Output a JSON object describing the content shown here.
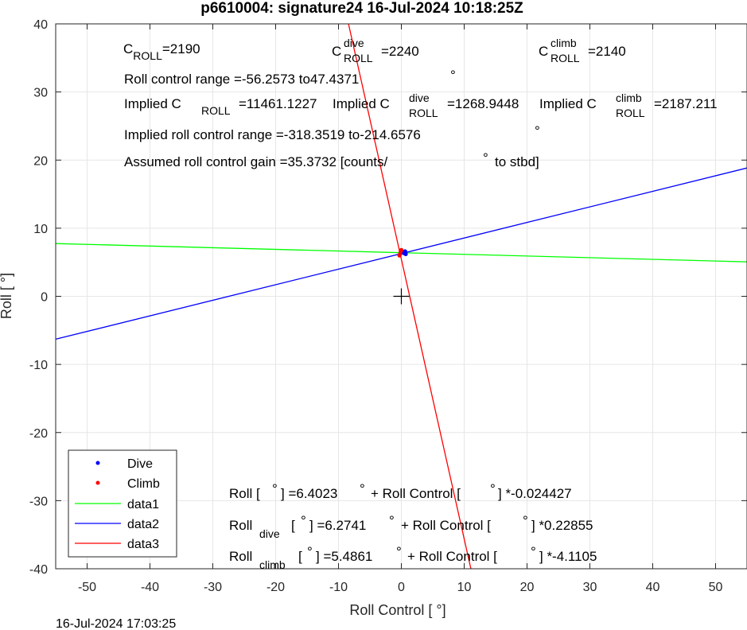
{
  "chart_data": {
    "type": "scatter",
    "title": "p6610004: signature24 16-Jul-2024 10:18:25Z",
    "xlabel": "Roll Control [   °]",
    "ylabel": "Roll [  °]",
    "xlim": [
      -55,
      55
    ],
    "ylim": [
      -40,
      40
    ],
    "xticks": [
      -50,
      -40,
      -30,
      -20,
      -10,
      0,
      10,
      20,
      30,
      40,
      50
    ],
    "yticks": [
      -40,
      -30,
      -20,
      -10,
      0,
      10,
      20,
      30,
      40
    ],
    "grid": true,
    "legend_position": "bottom-left",
    "footer": "16-Jul-2024 17:03:25",
    "series": [
      {
        "name": "Dive",
        "kind": "points",
        "color": "#0000ff",
        "x": [
          0.3,
          0.5,
          0.6,
          0.7,
          0.4
        ],
        "y": [
          6.4,
          6.3,
          6.6,
          6.2,
          6.5
        ]
      },
      {
        "name": "Climb",
        "kind": "points",
        "color": "#ff0000",
        "x": [
          -0.2,
          -0.1,
          -0.3,
          0.0
        ],
        "y": [
          6.2,
          6.6,
          6.0,
          6.8
        ]
      },
      {
        "name": "data1",
        "kind": "line",
        "color": "#00ff00",
        "x": [
          -55,
          55
        ],
        "y": [
          7.7457,
          5.0589
        ]
      },
      {
        "name": "data2",
        "kind": "line",
        "color": "#0000ff",
        "x": [
          -55,
          55
        ],
        "y": [
          -6.2962,
          18.8444
        ]
      },
      {
        "name": "data3",
        "kind": "line",
        "color": "#ff0000",
        "x": [
          -8.4097,
          11.0666
        ],
        "y": [
          40,
          -40
        ]
      }
    ],
    "center_marker": {
      "x": 0,
      "y": 0,
      "symbol": "+"
    },
    "annotations": {
      "c_roll": {
        "label": "C",
        "sub": "ROLL",
        "value": "=2190"
      },
      "c_roll_dive": {
        "label": "C",
        "sup": "dive",
        "sub": "ROLL",
        "value": "=2240"
      },
      "c_roll_climb": {
        "label": "C",
        "sup": "climb",
        "sub": "ROLL",
        "value": "=2140"
      },
      "range_text": "Roll control range =-56.2573 to47.4371",
      "implied_1": {
        "label": "Implied C",
        "sub": "ROLL",
        "value": "=11461.1227"
      },
      "implied_2": {
        "label": "Implied C",
        "sup": "dive",
        "sub": "ROLL",
        "value": "=1268.9448"
      },
      "implied_3": {
        "label": "Implied C",
        "sup": "climb",
        "sub": "ROLL",
        "value": "=2187.211"
      },
      "implied_range": "Implied roll control range =-318.3519 to-214.6576",
      "gain_text": "Assumed roll control gain =35.3732 [counts/",
      "gain_unit": "to stbd]",
      "fit_all": {
        "pre": "Roll [",
        "mid": "] =6.4023",
        "mid2": "+ Roll Control [",
        "post": "] *-0.024427"
      },
      "fit_dive": {
        "pre": "Roll",
        "sub": "dive",
        "mid": "[",
        "mid1": "] =6.2741",
        "mid2": "+ Roll Control [",
        "post": "] *0.22855"
      },
      "fit_climb": {
        "pre": "Roll",
        "sub": "climb",
        "mid": "[",
        "mid1": "] =5.4861",
        "mid2": "+ Roll Control [",
        "post": "] *-4.1105"
      },
      "deg": "°"
    }
  }
}
